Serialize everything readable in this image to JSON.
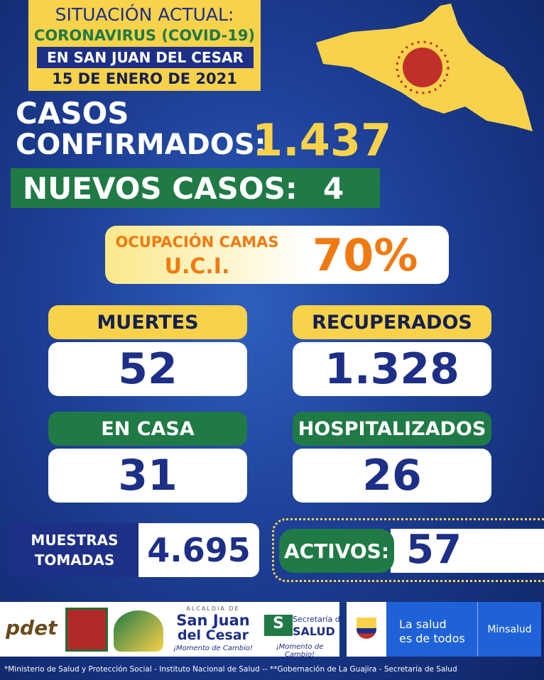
{
  "header": {
    "title": "SITUACIÓN ACTUAL:",
    "subtitle": "CORONAVIRUS (COVID-19)",
    "location": "EN SAN JUAN DEL CESAR",
    "date": "15 DE ENERO DE 2021"
  },
  "confirmed": {
    "label_line1": "CASOS",
    "label_line2": "CONFIRMADOS:",
    "value": "1.437"
  },
  "new_cases": {
    "label": "NUEVOS CASOS:",
    "value": "4"
  },
  "uci": {
    "label_line1": "OCUPACIÓN CAMAS",
    "label_line2": "U.C.I.",
    "value": "70%"
  },
  "stats": [
    {
      "label": "MUERTES",
      "value": "52",
      "style": "yellow"
    },
    {
      "label": "RECUPERADOS",
      "value": "1.328",
      "style": "yellow"
    },
    {
      "label": "EN CASA",
      "value": "31",
      "style": "green"
    },
    {
      "label": "HOSPITALIZADOS",
      "value": "26",
      "style": "green"
    }
  ],
  "samples": {
    "label_line1": "MUESTRAS",
    "label_line2": "TOMADAS",
    "value": "4.695"
  },
  "active": {
    "label": "ACTIVOS:",
    "value": "57"
  },
  "logos": {
    "pdet": "pdet",
    "alcaldia_heading": "ALCALDIA DE",
    "alcaldia_name_line1": "San Juan",
    "alcaldia_name_line2": "del Cesar",
    "slogan": "¡Momento de Cambio!",
    "secretaria_heading": "Secretaría de",
    "secretaria_name": "SALUD",
    "minsalud_slogan_line1": "La salud",
    "minsalud_slogan_line2": "es de todos",
    "minsalud_name": "Minsalud"
  },
  "footer": {
    "sources": "*Ministerio de Salud y Protección Social - Instituto Nacional de Salud  --  **Gobernación de La Guajira - Secretaría de Salud"
  }
}
